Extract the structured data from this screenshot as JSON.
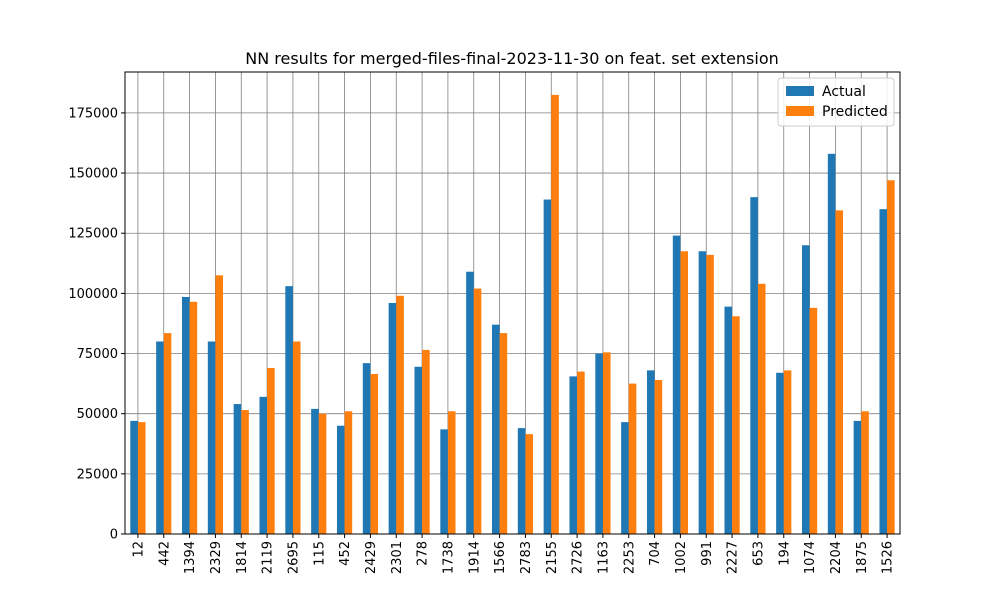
{
  "chart_data": {
    "type": "bar",
    "title": "NN results for merged-files-final-2023-11-30 on feat. set extension",
    "xlabel": "",
    "ylabel": "",
    "categories": [
      "12",
      "442",
      "1394",
      "2329",
      "1814",
      "2119",
      "2695",
      "115",
      "452",
      "2429",
      "2301",
      "278",
      "1738",
      "1914",
      "1566",
      "2783",
      "2155",
      "2726",
      "1163",
      "2253",
      "704",
      "1002",
      "991",
      "2227",
      "653",
      "194",
      "1074",
      "2204",
      "1875",
      "1526"
    ],
    "series": [
      {
        "name": "Actual",
        "color": "#1f77b4",
        "values": [
          47000,
          80000,
          98500,
          80000,
          54000,
          57000,
          103000,
          52000,
          45000,
          71000,
          96000,
          69500,
          43500,
          109000,
          87000,
          44000,
          139000,
          65500,
          75000,
          46500,
          68000,
          124000,
          117500,
          94500,
          140000,
          67000,
          120000,
          158000,
          47000,
          135000
        ]
      },
      {
        "name": "Predicted",
        "color": "#ff7f0e",
        "values": [
          46500,
          83500,
          96500,
          107500,
          51500,
          69000,
          80000,
          50000,
          51000,
          66500,
          99000,
          76500,
          51000,
          102000,
          83500,
          41500,
          182500,
          67500,
          75500,
          62500,
          64000,
          117500,
          116000,
          90500,
          104000,
          68000,
          94000,
          134500,
          51000,
          147000
        ]
      }
    ],
    "ylim": [
      0,
      192000
    ],
    "yticks": [
      0,
      25000,
      50000,
      75000,
      100000,
      125000,
      150000,
      175000
    ],
    "ytick_labels": [
      "0",
      "25000",
      "50000",
      "75000",
      "100000",
      "125000",
      "150000",
      "175000"
    ],
    "grid": true,
    "legend_position": "top-right"
  }
}
